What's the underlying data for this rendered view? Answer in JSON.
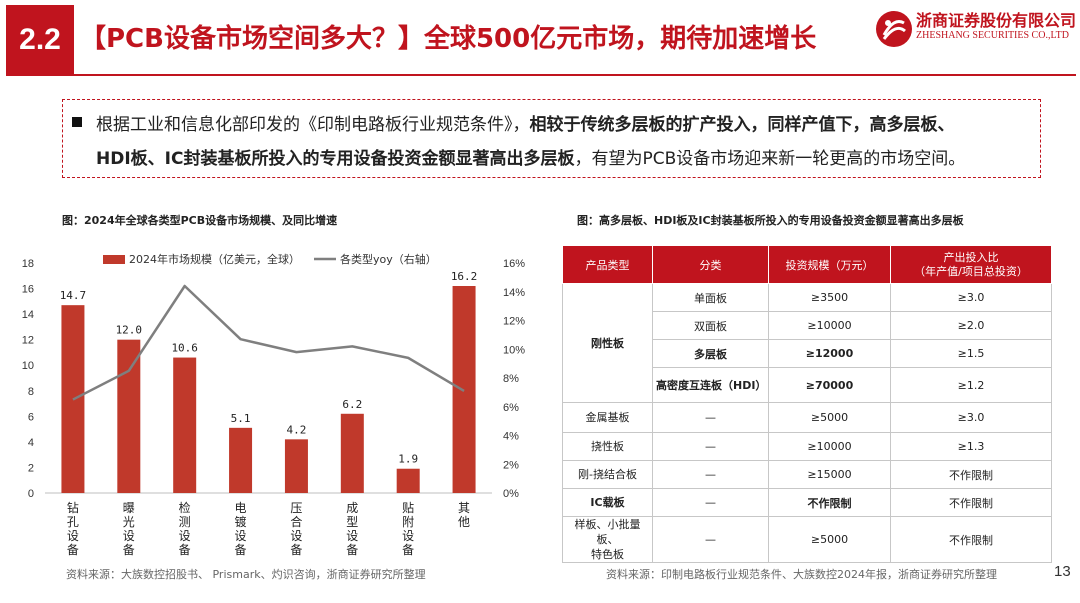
{
  "header": {
    "section_number": "2.2",
    "title": "【PCB设备市场空间多大？】全球500亿元市场，期待加速增长",
    "company_cn": "浙商证券股份有限公司",
    "company_en": "ZHESHANG SECURITIES CO.,LTD"
  },
  "callout": {
    "line1_normal": "根据工业和信息化部印发的《印制电路板行业规范条件》，",
    "line1_bold": "相较于传统多层板的扩产投入，同样产值下，高多层板、",
    "line2_bold": "HDI板、IC封装基板所投入的专用设备投资金额显著高出多层板",
    "line2_normal": "，有望为PCB设备市场迎来新一轮更高的市场空间。"
  },
  "left_figure": {
    "title": "图：2024年全球各类型PCB设备市场规模、及同比增速",
    "source": "资料来源：大族数控招股书、 Prismark、灼识咨询，浙商证券研究所整理"
  },
  "right_figure": {
    "title": "图：高多层板、HDI板及IC封装基板所投入的专用设备投资金额显著高出多层板",
    "source": "资料来源：印制电路板行业规范条件、大族数控2024年报，浙商证券研究所整理"
  },
  "page_number": "13",
  "chart_data": {
    "type": "bar",
    "categories": [
      "钻孔设备",
      "曝光设备",
      "检测设备",
      "电镀设备",
      "压合设备",
      "成型设备",
      "贴附设备",
      "其他"
    ],
    "series": [
      {
        "name": "2024年市场规模（亿美元，全球）",
        "type": "bar",
        "axis": "left",
        "color": "#c0392b",
        "values": [
          14.7,
          12.0,
          10.6,
          5.1,
          4.2,
          6.2,
          1.9,
          16.2
        ],
        "labels": [
          "14.7",
          "12.0",
          "10.6",
          "5.1",
          "4.2",
          "6.2",
          "1.9",
          "16.2"
        ]
      },
      {
        "name": "各类型yoy（右轴）",
        "type": "line",
        "axis": "right",
        "color": "#7f7f7f",
        "values": [
          6.5,
          8.5,
          14.4,
          10.7,
          9.8,
          10.2,
          9.4,
          7.1
        ]
      }
    ],
    "y_left": {
      "range": [
        0,
        18
      ],
      "ticks": [
        "0",
        "2",
        "4",
        "6",
        "8",
        "10",
        "12",
        "14",
        "16",
        "18"
      ]
    },
    "y_right": {
      "range": [
        0,
        16
      ],
      "ticks": [
        "0%",
        "2%",
        "4%",
        "6%",
        "8%",
        "10%",
        "12%",
        "14%",
        "16%"
      ]
    },
    "legend_position": "top",
    "grid": false
  },
  "table": {
    "headers": [
      "产品类型",
      "分类",
      "投资规模（万元）",
      "产出投入比\n（年产值/项目总投资）"
    ],
    "rigid_label": "刚性板",
    "rigid_rows": [
      {
        "sub": "单面板",
        "invest": "≥3500",
        "ratio": "≥3.0",
        "bold": false
      },
      {
        "sub": "双面板",
        "invest": "≥10000",
        "ratio": "≥2.0",
        "bold": false
      },
      {
        "sub": "多层板",
        "invest": "≥12000",
        "ratio": "≥1.5",
        "bold": true
      },
      {
        "sub": "高密度互连板（HDI）",
        "invest": "≥70000",
        "ratio": "≥1.2",
        "bold": true
      }
    ],
    "other_rows": [
      {
        "type": "金属基板",
        "sub": "—",
        "invest": "≥5000",
        "ratio": "≥3.0",
        "bold": false
      },
      {
        "type": "挠性板",
        "sub": "—",
        "invest": "≥10000",
        "ratio": "≥1.3",
        "bold": false
      },
      {
        "type": "刚-挠结合板",
        "sub": "—",
        "invest": "≥15000",
        "ratio": "不作限制",
        "bold": false
      },
      {
        "type": "IC载板",
        "sub": "—",
        "invest": "不作限制",
        "ratio": "不作限制",
        "bold": true
      },
      {
        "type": "样板、小批量板、\n特色板",
        "sub": "—",
        "invest": "≥5000",
        "ratio": "不作限制",
        "bold": false
      }
    ]
  },
  "colors": {
    "brand_red": "#c0141e",
    "bar_red": "#c0392b",
    "line_gray": "#7f7f7f"
  },
  "icons": {
    "logo": "zheshang-logo-icon",
    "bullet": "square-bullet-icon"
  }
}
